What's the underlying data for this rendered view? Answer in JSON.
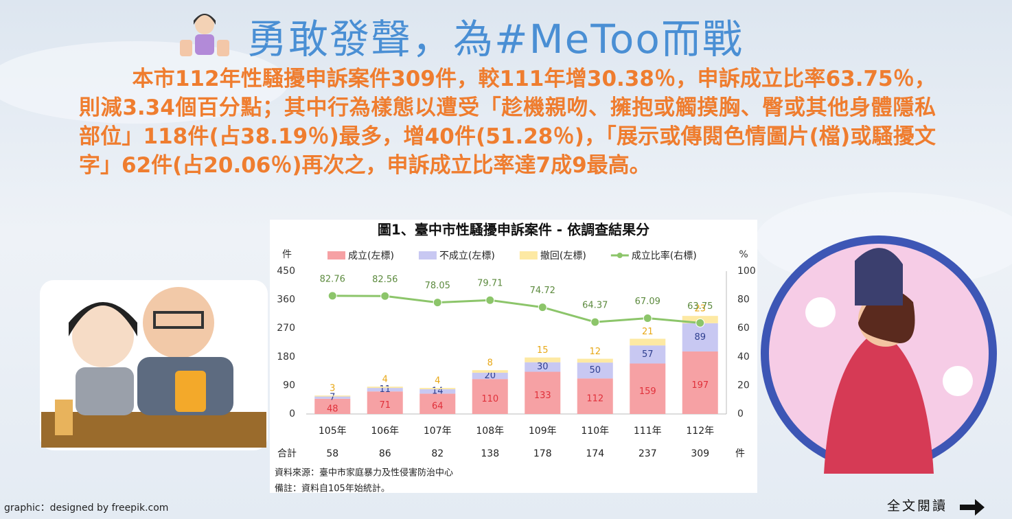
{
  "title": "勇敢發聲，為#MeToo而戰",
  "body": "本市112年性騷擾申訴案件309件，較111年增30.38％，申訴成立比率63.75％，則減3.34個百分點；其中行為樣態以遭受「趁機親吻、擁抱或觸摸胸、臀或其他身體隱私部位」118件(占38.19％)最多，增40件(51.28％)，「展示或傳閱色情圖片(檔)或騷擾文字」62件(占20.06％)再次之，申訴成立比率達7成9最高。",
  "credit": "graphic：designed by freepik.com",
  "read_more": "全文閱讀",
  "chart_data": {
    "type": "bar",
    "stacked": true,
    "title": "圖1、臺中市性騷擾申訴案件 - 依調查結果分",
    "y_label": "件",
    "y2_label": "%",
    "categories": [
      "105年",
      "106年",
      "107年",
      "108年",
      "109年",
      "110年",
      "111年",
      "112年"
    ],
    "series": [
      {
        "name": "成立(左標)",
        "color": "#f6a1a4",
        "label_color": "#e0303a",
        "values": [
          48,
          71,
          64,
          110,
          133,
          112,
          159,
          197
        ]
      },
      {
        "name": "不成立(左標)",
        "color": "#c8c8f2",
        "label_color": "#2f3f8f",
        "values": [
          7,
          11,
          14,
          20,
          30,
          50,
          57,
          89
        ]
      },
      {
        "name": "撤回(左標)",
        "color": "#fde9a3",
        "label_color": "#e8a817",
        "values": [
          3,
          4,
          4,
          8,
          15,
          12,
          21,
          23
        ]
      },
      {
        "name": "成立比率(右標)",
        "type": "line",
        "axis": "y2",
        "color": "#8cc56a",
        "label_color": "#5c8a3e",
        "values": [
          82.76,
          82.56,
          78.05,
          79.71,
          74.72,
          64.37,
          67.09,
          63.75
        ]
      }
    ],
    "ylim": [
      0,
      450
    ],
    "yticks": [
      0,
      90,
      180,
      270,
      360,
      450
    ],
    "y2lim": [
      0,
      100
    ],
    "y2ticks": [
      0,
      20,
      40,
      60,
      80,
      100
    ],
    "totals": {
      "label": "合計",
      "values": [
        58,
        86,
        82,
        138,
        178,
        174,
        237,
        309
      ],
      "unit": "件"
    },
    "notes": [
      "資料來源：臺中市家庭暴力及性侵害防治中心",
      "備註：資料自105年始統計。"
    ]
  }
}
